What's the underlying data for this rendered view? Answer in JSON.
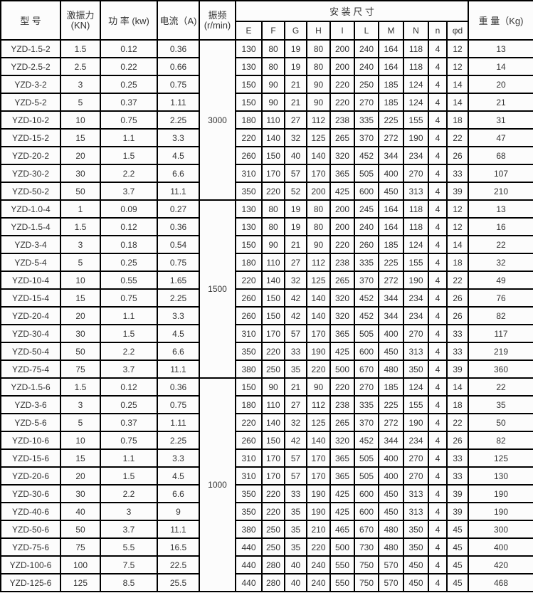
{
  "colors": {
    "border": "#000000",
    "text": "#333333",
    "cell_background": "#fcfcfc"
  },
  "table": {
    "header": {
      "model": "型 号",
      "force_line1": "激振力",
      "force_line2": "(KN)",
      "power": "功 率 (kw)",
      "current": "电流（A)",
      "freq_line1": "振频",
      "freq_line2": "(r/min)",
      "install": "安  装  尺  寸",
      "dim_labels": [
        "E",
        "F",
        "G",
        "H",
        "I",
        "L",
        "M",
        "N",
        "n",
        "φd"
      ],
      "weight": "重 量（Kg)"
    },
    "groups": [
      {
        "freq": "3000",
        "rows": [
          {
            "model": "YZD-1.5-2",
            "force": "1.5",
            "power": "0.12",
            "current": "0.36",
            "dims": [
              "130",
              "80",
              "19",
              "80",
              "200",
              "240",
              "164",
              "118",
              "4",
              "12"
            ],
            "weight": "13"
          },
          {
            "model": "YZD-2.5-2",
            "force": "2.5",
            "power": "0.22",
            "current": "0.66",
            "dims": [
              "130",
              "80",
              "19",
              "80",
              "200",
              "240",
              "164",
              "118",
              "4",
              "12"
            ],
            "weight": "14"
          },
          {
            "model": "YZD-3-2",
            "force": "3",
            "power": "0.25",
            "current": "0.75",
            "dims": [
              "150",
              "90",
              "21",
              "90",
              "220",
              "250",
              "185",
              "124",
              "4",
              "14"
            ],
            "weight": "20"
          },
          {
            "model": "YZD-5-2",
            "force": "5",
            "power": "0.37",
            "current": "1.11",
            "dims": [
              "150",
              "90",
              "21",
              "90",
              "220",
              "270",
              "185",
              "124",
              "4",
              "14"
            ],
            "weight": "21"
          },
          {
            "model": "YZD-10-2",
            "force": "10",
            "power": "0.75",
            "current": "2.25",
            "dims": [
              "180",
              "110",
              "27",
              "112",
              "238",
              "335",
              "225",
              "155",
              "4",
              "18"
            ],
            "weight": "31"
          },
          {
            "model": "YZD-15-2",
            "force": "15",
            "power": "1.1",
            "current": "3.3",
            "dims": [
              "220",
              "140",
              "32",
              "125",
              "265",
              "370",
              "272",
              "190",
              "4",
              "22"
            ],
            "weight": "47"
          },
          {
            "model": "YZD-20-2",
            "force": "20",
            "power": "1.5",
            "current": "4.5",
            "dims": [
              "260",
              "150",
              "40",
              "140",
              "320",
              "452",
              "344",
              "234",
              "4",
              "26"
            ],
            "weight": "68"
          },
          {
            "model": "YZD-30-2",
            "force": "30",
            "power": "2.2",
            "current": "6.6",
            "dims": [
              "310",
              "170",
              "57",
              "170",
              "365",
              "505",
              "400",
              "270",
              "4",
              "33"
            ],
            "weight": "107"
          },
          {
            "model": "YZD-50-2",
            "force": "50",
            "power": "3.7",
            "current": "11.1",
            "dims": [
              "350",
              "220",
              "52",
              "200",
              "425",
              "600",
              "450",
              "313",
              "4",
              "39"
            ],
            "weight": "210"
          }
        ]
      },
      {
        "freq": "1500",
        "rows": [
          {
            "model": "YZD-1.0-4",
            "force": "1",
            "power": "0.09",
            "current": "0.27",
            "dims": [
              "130",
              "80",
              "19",
              "80",
              "200",
              "245",
              "164",
              "118",
              "4",
              "12"
            ],
            "weight": "13"
          },
          {
            "model": "YZD-1.5-4",
            "force": "1.5",
            "power": "0.12",
            "current": "0.36",
            "dims": [
              "130",
              "80",
              "19",
              "80",
              "200",
              "240",
              "164",
              "118",
              "4",
              "12"
            ],
            "weight": "16"
          },
          {
            "model": "YZD-3-4",
            "force": "3",
            "power": "0.18",
            "current": "0.54",
            "dims": [
              "150",
              "90",
              "21",
              "90",
              "220",
              "260",
              "185",
              "124",
              "4",
              "14"
            ],
            "weight": "22"
          },
          {
            "model": "YZD-5-4",
            "force": "5",
            "power": "0.25",
            "current": "0.75",
            "dims": [
              "180",
              "110",
              "27",
              "112",
              "238",
              "335",
              "225",
              "155",
              "4",
              "18"
            ],
            "weight": "32"
          },
          {
            "model": "YZD-10-4",
            "force": "10",
            "power": "0.55",
            "current": "1.65",
            "dims": [
              "220",
              "140",
              "32",
              "125",
              "265",
              "370",
              "272",
              "190",
              "4",
              "22"
            ],
            "weight": "49"
          },
          {
            "model": "YZD-15-4",
            "force": "15",
            "power": "0.75",
            "current": "2.25",
            "dims": [
              "260",
              "150",
              "42",
              "140",
              "320",
              "452",
              "344",
              "234",
              "4",
              "26"
            ],
            "weight": "76"
          },
          {
            "model": "YZD-20-4",
            "force": "20",
            "power": "1.1",
            "current": "3.3",
            "dims": [
              "260",
              "150",
              "42",
              "140",
              "320",
              "452",
              "344",
              "234",
              "4",
              "26"
            ],
            "weight": "82"
          },
          {
            "model": "YZD-30-4",
            "force": "30",
            "power": "1.5",
            "current": "4.5",
            "dims": [
              "310",
              "170",
              "57",
              "170",
              "365",
              "505",
              "400",
              "270",
              "4",
              "33"
            ],
            "weight": "117"
          },
          {
            "model": "YZD-50-4",
            "force": "50",
            "power": "2.2",
            "current": "6.6",
            "dims": [
              "350",
              "220",
              "33",
              "190",
              "425",
              "600",
              "450",
              "313",
              "4",
              "33"
            ],
            "weight": "219"
          },
          {
            "model": "YZD-75-4",
            "force": "75",
            "power": "3.7",
            "current": "11.1",
            "dims": [
              "380",
              "250",
              "35",
              "220",
              "500",
              "670",
              "480",
              "350",
              "4",
              "39"
            ],
            "weight": "360"
          }
        ]
      },
      {
        "freq": "1000",
        "rows": [
          {
            "model": "YZD-1.5-6",
            "force": "1.5",
            "power": "0.12",
            "current": "0.36",
            "dims": [
              "150",
              "90",
              "21",
              "90",
              "220",
              "270",
              "185",
              "124",
              "4",
              "14"
            ],
            "weight": "22"
          },
          {
            "model": "YZD-3-6",
            "force": "3",
            "power": "0.25",
            "current": "0.75",
            "dims": [
              "180",
              "110",
              "27",
              "112",
              "238",
              "335",
              "225",
              "155",
              "4",
              "18"
            ],
            "weight": "35"
          },
          {
            "model": "YZD-5-6",
            "force": "5",
            "power": "0.37",
            "current": "1.11",
            "dims": [
              "220",
              "140",
              "32",
              "125",
              "265",
              "370",
              "272",
              "190",
              "4",
              "22"
            ],
            "weight": "50"
          },
          {
            "model": "YZD-10-6",
            "force": "10",
            "power": "0.75",
            "current": "2.25",
            "dims": [
              "260",
              "150",
              "42",
              "140",
              "320",
              "452",
              "344",
              "234",
              "4",
              "26"
            ],
            "weight": "82"
          },
          {
            "model": "YZD-15-6",
            "force": "15",
            "power": "1.1",
            "current": "3.3",
            "dims": [
              "310",
              "170",
              "57",
              "170",
              "365",
              "505",
              "400",
              "270",
              "4",
              "33"
            ],
            "weight": "125"
          },
          {
            "model": "YZD-20-6",
            "force": "20",
            "power": "1.5",
            "current": "4.5",
            "dims": [
              "310",
              "170",
              "57",
              "170",
              "365",
              "505",
              "400",
              "270",
              "4",
              "33"
            ],
            "weight": "130"
          },
          {
            "model": "YZD-30-6",
            "force": "30",
            "power": "2.2",
            "current": "6.6",
            "dims": [
              "350",
              "220",
              "33",
              "190",
              "425",
              "600",
              "450",
              "313",
              "4",
              "39"
            ],
            "weight": "190"
          },
          {
            "model": "YZD-40-6",
            "force": "40",
            "power": "3",
            "current": "9",
            "dims": [
              "350",
              "220",
              "35",
              "190",
              "425",
              "600",
              "450",
              "313",
              "4",
              "39"
            ],
            "weight": "190"
          },
          {
            "model": "YZD-50-6",
            "force": "50",
            "power": "3.7",
            "current": "11.1",
            "dims": [
              "380",
              "250",
              "35",
              "210",
              "465",
              "670",
              "480",
              "350",
              "4",
              "45"
            ],
            "weight": "300"
          },
          {
            "model": "YZD-75-6",
            "force": "75",
            "power": "5.5",
            "current": "16.5",
            "dims": [
              "440",
              "250",
              "35",
              "220",
              "500",
              "730",
              "480",
              "350",
              "4",
              "45"
            ],
            "weight": "400"
          },
          {
            "model": "YZD-100-6",
            "force": "100",
            "power": "7.5",
            "current": "22.5",
            "dims": [
              "440",
              "280",
              "40",
              "240",
              "550",
              "750",
              "570",
              "450",
              "4",
              "45"
            ],
            "weight": "420"
          },
          {
            "model": "YZD-125-6",
            "force": "125",
            "power": "8.5",
            "current": "25.5",
            "dims": [
              "440",
              "280",
              "40",
              "240",
              "550",
              "750",
              "570",
              "450",
              "4",
              "45"
            ],
            "weight": "468"
          }
        ]
      }
    ]
  }
}
